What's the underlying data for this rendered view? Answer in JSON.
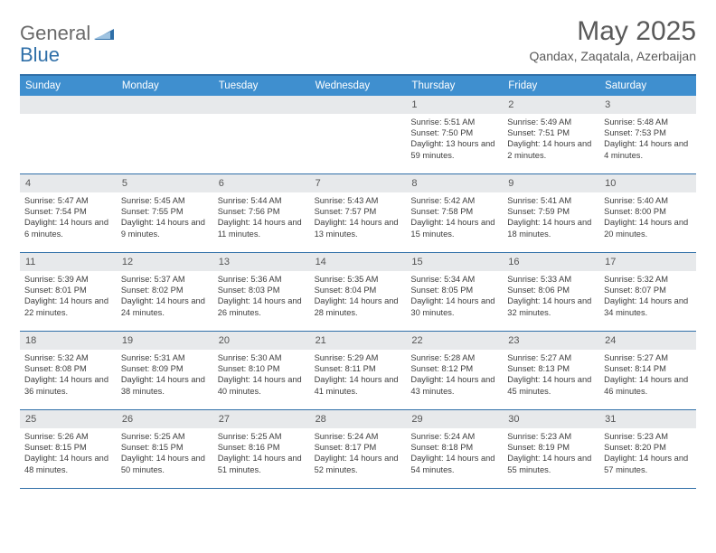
{
  "logo": {
    "text1": "General",
    "text2": "Blue"
  },
  "title": "May 2025",
  "location": "Qandax, Zaqatala, Azerbaijan",
  "colors": {
    "header_bar": "#3f8fcf",
    "rule": "#2f6fa8",
    "daynum_bg": "#e7e9eb",
    "text": "#3d3d3d",
    "title_text": "#5a5a5a"
  },
  "days_of_week": [
    "Sunday",
    "Monday",
    "Tuesday",
    "Wednesday",
    "Thursday",
    "Friday",
    "Saturday"
  ],
  "weeks": [
    [
      {
        "n": "",
        "sr": "",
        "ss": "",
        "dl": ""
      },
      {
        "n": "",
        "sr": "",
        "ss": "",
        "dl": ""
      },
      {
        "n": "",
        "sr": "",
        "ss": "",
        "dl": ""
      },
      {
        "n": "",
        "sr": "",
        "ss": "",
        "dl": ""
      },
      {
        "n": "1",
        "sr": "Sunrise: 5:51 AM",
        "ss": "Sunset: 7:50 PM",
        "dl": "Daylight: 13 hours and 59 minutes."
      },
      {
        "n": "2",
        "sr": "Sunrise: 5:49 AM",
        "ss": "Sunset: 7:51 PM",
        "dl": "Daylight: 14 hours and 2 minutes."
      },
      {
        "n": "3",
        "sr": "Sunrise: 5:48 AM",
        "ss": "Sunset: 7:53 PM",
        "dl": "Daylight: 14 hours and 4 minutes."
      }
    ],
    [
      {
        "n": "4",
        "sr": "Sunrise: 5:47 AM",
        "ss": "Sunset: 7:54 PM",
        "dl": "Daylight: 14 hours and 6 minutes."
      },
      {
        "n": "5",
        "sr": "Sunrise: 5:45 AM",
        "ss": "Sunset: 7:55 PM",
        "dl": "Daylight: 14 hours and 9 minutes."
      },
      {
        "n": "6",
        "sr": "Sunrise: 5:44 AM",
        "ss": "Sunset: 7:56 PM",
        "dl": "Daylight: 14 hours and 11 minutes."
      },
      {
        "n": "7",
        "sr": "Sunrise: 5:43 AM",
        "ss": "Sunset: 7:57 PM",
        "dl": "Daylight: 14 hours and 13 minutes."
      },
      {
        "n": "8",
        "sr": "Sunrise: 5:42 AM",
        "ss": "Sunset: 7:58 PM",
        "dl": "Daylight: 14 hours and 15 minutes."
      },
      {
        "n": "9",
        "sr": "Sunrise: 5:41 AM",
        "ss": "Sunset: 7:59 PM",
        "dl": "Daylight: 14 hours and 18 minutes."
      },
      {
        "n": "10",
        "sr": "Sunrise: 5:40 AM",
        "ss": "Sunset: 8:00 PM",
        "dl": "Daylight: 14 hours and 20 minutes."
      }
    ],
    [
      {
        "n": "11",
        "sr": "Sunrise: 5:39 AM",
        "ss": "Sunset: 8:01 PM",
        "dl": "Daylight: 14 hours and 22 minutes."
      },
      {
        "n": "12",
        "sr": "Sunrise: 5:37 AM",
        "ss": "Sunset: 8:02 PM",
        "dl": "Daylight: 14 hours and 24 minutes."
      },
      {
        "n": "13",
        "sr": "Sunrise: 5:36 AM",
        "ss": "Sunset: 8:03 PM",
        "dl": "Daylight: 14 hours and 26 minutes."
      },
      {
        "n": "14",
        "sr": "Sunrise: 5:35 AM",
        "ss": "Sunset: 8:04 PM",
        "dl": "Daylight: 14 hours and 28 minutes."
      },
      {
        "n": "15",
        "sr": "Sunrise: 5:34 AM",
        "ss": "Sunset: 8:05 PM",
        "dl": "Daylight: 14 hours and 30 minutes."
      },
      {
        "n": "16",
        "sr": "Sunrise: 5:33 AM",
        "ss": "Sunset: 8:06 PM",
        "dl": "Daylight: 14 hours and 32 minutes."
      },
      {
        "n": "17",
        "sr": "Sunrise: 5:32 AM",
        "ss": "Sunset: 8:07 PM",
        "dl": "Daylight: 14 hours and 34 minutes."
      }
    ],
    [
      {
        "n": "18",
        "sr": "Sunrise: 5:32 AM",
        "ss": "Sunset: 8:08 PM",
        "dl": "Daylight: 14 hours and 36 minutes."
      },
      {
        "n": "19",
        "sr": "Sunrise: 5:31 AM",
        "ss": "Sunset: 8:09 PM",
        "dl": "Daylight: 14 hours and 38 minutes."
      },
      {
        "n": "20",
        "sr": "Sunrise: 5:30 AM",
        "ss": "Sunset: 8:10 PM",
        "dl": "Daylight: 14 hours and 40 minutes."
      },
      {
        "n": "21",
        "sr": "Sunrise: 5:29 AM",
        "ss": "Sunset: 8:11 PM",
        "dl": "Daylight: 14 hours and 41 minutes."
      },
      {
        "n": "22",
        "sr": "Sunrise: 5:28 AM",
        "ss": "Sunset: 8:12 PM",
        "dl": "Daylight: 14 hours and 43 minutes."
      },
      {
        "n": "23",
        "sr": "Sunrise: 5:27 AM",
        "ss": "Sunset: 8:13 PM",
        "dl": "Daylight: 14 hours and 45 minutes."
      },
      {
        "n": "24",
        "sr": "Sunrise: 5:27 AM",
        "ss": "Sunset: 8:14 PM",
        "dl": "Daylight: 14 hours and 46 minutes."
      }
    ],
    [
      {
        "n": "25",
        "sr": "Sunrise: 5:26 AM",
        "ss": "Sunset: 8:15 PM",
        "dl": "Daylight: 14 hours and 48 minutes."
      },
      {
        "n": "26",
        "sr": "Sunrise: 5:25 AM",
        "ss": "Sunset: 8:15 PM",
        "dl": "Daylight: 14 hours and 50 minutes."
      },
      {
        "n": "27",
        "sr": "Sunrise: 5:25 AM",
        "ss": "Sunset: 8:16 PM",
        "dl": "Daylight: 14 hours and 51 minutes."
      },
      {
        "n": "28",
        "sr": "Sunrise: 5:24 AM",
        "ss": "Sunset: 8:17 PM",
        "dl": "Daylight: 14 hours and 52 minutes."
      },
      {
        "n": "29",
        "sr": "Sunrise: 5:24 AM",
        "ss": "Sunset: 8:18 PM",
        "dl": "Daylight: 14 hours and 54 minutes."
      },
      {
        "n": "30",
        "sr": "Sunrise: 5:23 AM",
        "ss": "Sunset: 8:19 PM",
        "dl": "Daylight: 14 hours and 55 minutes."
      },
      {
        "n": "31",
        "sr": "Sunrise: 5:23 AM",
        "ss": "Sunset: 8:20 PM",
        "dl": "Daylight: 14 hours and 57 minutes."
      }
    ]
  ]
}
